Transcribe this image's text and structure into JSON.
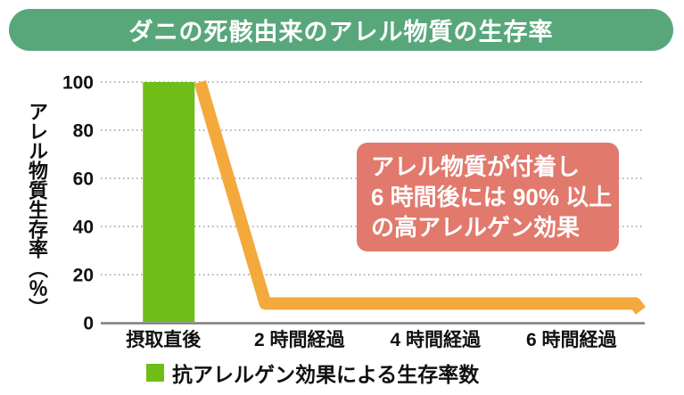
{
  "title": "ダニの死骸由来のアレル物質の生存率",
  "theme": {
    "banner_green": "#58a77b",
    "bar_green": "#6fbe18",
    "line_orange": "#f4a93d",
    "annotation_salmon": "#e1796d",
    "gridline_gray": "#9a9a9a",
    "axis_gray": "#7d7d7d",
    "text_black": "#111111",
    "text_white": "#ffffff"
  },
  "chart_data": {
    "type": "combo",
    "title": "ダニの死骸由来のアレル物質の生存率",
    "categories": [
      "摂取直後",
      "2 時間経過",
      "4 時間経過",
      "6 時間経過"
    ],
    "y_axis": {
      "label": "アレル物質生存率（％）",
      "ticks": [
        0,
        20,
        40,
        60,
        80,
        100
      ],
      "gridline_values": [
        20,
        40,
        60,
        80,
        100
      ],
      "range": [
        0,
        100
      ],
      "grid": "dotted"
    },
    "bar_series": {
      "name": "抗アレルゲン効果による生存率数",
      "type": "bar",
      "values": [
        100,
        null,
        null,
        null
      ],
      "color": "#6fbe18"
    },
    "line_series": {
      "name": "アレル物質生存率（％）",
      "type": "line",
      "color": "#f4a93d",
      "points": [
        {
          "t": 0.23,
          "v": 100
        },
        {
          "t": 0.71,
          "v": 8
        },
        {
          "t": 3.43,
          "v": 8
        },
        {
          "t": 3.47,
          "v": 5
        }
      ],
      "summary_values_by_category": [
        100,
        8,
        8,
        8
      ]
    },
    "annotation": {
      "line1": "アレル物質が付着し",
      "line2": "6 時間後には 90% 以上",
      "line3": "の高アレルゲン効果",
      "color": "#e1796d"
    },
    "legend": {
      "label": "抗アレルゲン効果による生存率数",
      "swatch_color": "#6fbe18",
      "position": "bottom-left"
    }
  }
}
